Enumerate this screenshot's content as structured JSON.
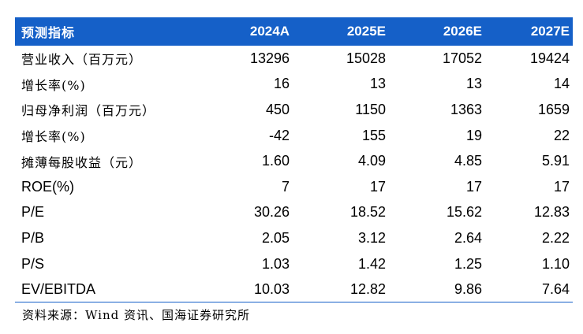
{
  "table": {
    "headers": [
      "预测指标",
      "2024A",
      "2025E",
      "2026E",
      "2027E"
    ],
    "rows": [
      {
        "label": "营业收入（百万元）",
        "values": [
          "13296",
          "15028",
          "17052",
          "19424"
        ]
      },
      {
        "label": "增长率(%)",
        "values": [
          "16",
          "13",
          "13",
          "14"
        ]
      },
      {
        "label": "归母净利润（百万元）",
        "values": [
          "450",
          "1150",
          "1363",
          "1659"
        ]
      },
      {
        "label": "增长率(%)",
        "values": [
          "-42",
          "155",
          "19",
          "22"
        ]
      },
      {
        "label": "摊薄每股收益（元）",
        "values": [
          "1.60",
          "4.09",
          "4.85",
          "5.91"
        ]
      },
      {
        "label": "ROE(%)",
        "values": [
          "7",
          "17",
          "17",
          "17"
        ]
      },
      {
        "label": "P/E",
        "values": [
          "30.26",
          "18.52",
          "15.62",
          "12.83"
        ]
      },
      {
        "label": "P/B",
        "values": [
          "2.05",
          "3.12",
          "2.64",
          "2.22"
        ]
      },
      {
        "label": "P/S",
        "values": [
          "1.03",
          "1.42",
          "1.25",
          "1.10"
        ]
      },
      {
        "label": "EV/EBITDA",
        "values": [
          "10.03",
          "12.82",
          "9.86",
          "7.64"
        ]
      }
    ]
  },
  "source": "资料来源：Wind 资讯、国海证券研究所",
  "colors": {
    "header_bg": "#1560c8",
    "header_text": "#ffffff",
    "rule": "#1560c8"
  }
}
